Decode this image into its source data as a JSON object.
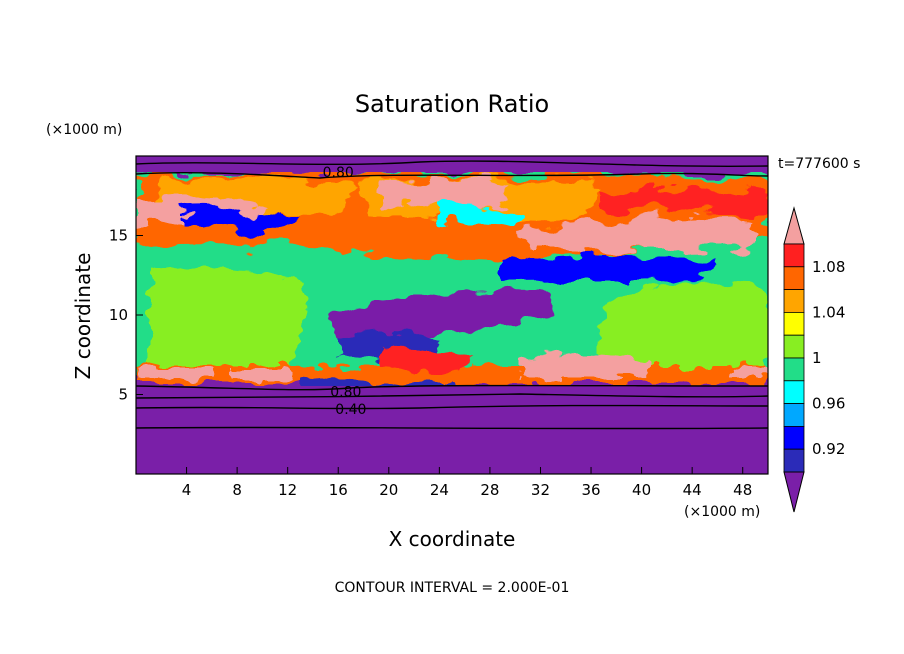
{
  "chart_data": {
    "type": "heatmap",
    "title": "Saturation Ratio",
    "xlabel": "X coordinate",
    "ylabel": "Z coordinate",
    "x_unit": "(×1000 m)",
    "y_unit": "(×1000 m)",
    "time_label": "t=777600 s",
    "footer": "CONTOUR INTERVAL = 2.000E-01",
    "xlim": [
      0,
      50
    ],
    "ylim": [
      0,
      20
    ],
    "x_ticks": [
      4,
      8,
      12,
      16,
      20,
      24,
      28,
      32,
      36,
      40,
      44,
      48
    ],
    "y_ticks": [
      5,
      10,
      15
    ],
    "colorbar": {
      "tick_labels": [
        "0.92",
        "0.96",
        "1",
        "1.04",
        "1.08"
      ],
      "levels": [
        0.92,
        0.94,
        0.96,
        0.98,
        1.0,
        1.02,
        1.04,
        1.06,
        1.08,
        1.1
      ],
      "colors": [
        "#7a1fa8",
        "#2b2bb8",
        "#0000ff",
        "#00a8ff",
        "#00ffff",
        "#22dd88",
        "#88ee22",
        "#ffff00",
        "#ffa500",
        "#ff6600",
        "#ff2020",
        "#f4a0a0"
      ],
      "extend": "both"
    },
    "contour_labels": [
      {
        "text": "0.80",
        "x": 16.0,
        "z": 19.0
      },
      {
        "text": "0.80",
        "x": 16.6,
        "z": 5.2
      },
      {
        "text": "0.40",
        "x": 17.0,
        "z": 4.1
      }
    ]
  }
}
